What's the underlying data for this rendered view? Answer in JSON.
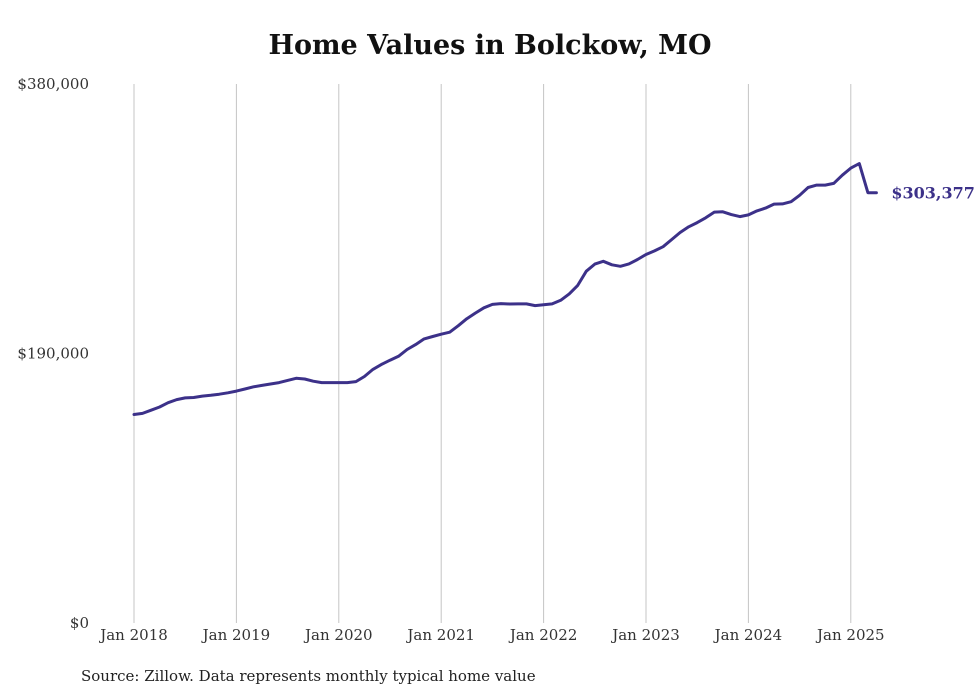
{
  "chart_data": {
    "type": "line",
    "title": "Home Values in Bolckow, MO",
    "source": "Source: Zillow. Data represents monthly typical home value",
    "xlabel": "",
    "ylabel": "",
    "x_ticks": [
      "Jan 2018",
      "Jan 2019",
      "Jan 2020",
      "Jan 2021",
      "Jan 2022",
      "Jan 2023",
      "Jan 2024",
      "Jan 2025"
    ],
    "y_ticks": [
      "$0",
      "$190,000",
      "$380,000"
    ],
    "ylim": [
      0,
      380000
    ],
    "grid": "vertical",
    "end_label": "$303,377",
    "line_color": "#3c3189",
    "series": [
      {
        "name": "",
        "x": [
          "2018-01",
          "2018-02",
          "2018-03",
          "2018-04",
          "2018-05",
          "2018-06",
          "2018-07",
          "2018-08",
          "2018-09",
          "2018-10",
          "2018-11",
          "2018-12",
          "2019-01",
          "2019-02",
          "2019-03",
          "2019-04",
          "2019-05",
          "2019-06",
          "2019-07",
          "2019-08",
          "2019-09",
          "2019-10",
          "2019-11",
          "2019-12",
          "2020-01",
          "2020-02",
          "2020-03",
          "2020-04",
          "2020-05",
          "2020-06",
          "2020-07",
          "2020-08",
          "2020-09",
          "2020-10",
          "2020-11",
          "2020-12",
          "2021-01",
          "2021-02",
          "2021-03",
          "2021-04",
          "2021-05",
          "2021-06",
          "2021-07",
          "2021-08",
          "2021-09",
          "2021-10",
          "2021-11",
          "2021-12",
          "2022-01",
          "2022-02",
          "2022-03",
          "2022-04",
          "2022-05",
          "2022-06",
          "2022-07",
          "2022-08",
          "2022-09",
          "2022-10",
          "2022-11",
          "2022-12",
          "2023-01",
          "2023-02",
          "2023-03",
          "2023-04",
          "2023-05",
          "2023-06",
          "2023-07",
          "2023-08",
          "2023-09",
          "2023-10",
          "2023-11",
          "2023-12",
          "2024-01",
          "2024-02",
          "2024-03",
          "2024-04",
          "2024-05",
          "2024-06",
          "2024-07",
          "2024-08",
          "2024-09",
          "2024-10",
          "2024-11",
          "2024-12",
          "2025-01",
          "2025-02",
          "2025-03",
          "2025-04"
        ],
        "values": [
          147000,
          147800,
          150000,
          152300,
          155300,
          157500,
          158700,
          159000,
          160000,
          160500,
          161300,
          162300,
          163500,
          165000,
          166500,
          167500,
          168500,
          169500,
          171000,
          172500,
          172000,
          170500,
          169500,
          169500,
          169500,
          169500,
          170200,
          173800,
          178800,
          182300,
          185300,
          188000,
          192800,
          196300,
          200300,
          202000,
          203600,
          205000,
          209600,
          214500,
          218500,
          222200,
          224600,
          225200,
          224900,
          225000,
          225000,
          223800,
          224400,
          225000,
          227500,
          232000,
          238000,
          248000,
          253000,
          255000,
          252500,
          251500,
          253200,
          256300,
          259800,
          262300,
          265300,
          270300,
          275300,
          279300,
          282300,
          285700,
          289700,
          289900,
          287900,
          286500,
          287700,
          290500,
          292500,
          295300,
          295500,
          297000,
          301500,
          307000,
          308700,
          308700,
          309900,
          315700,
          320700,
          323900,
          303377,
          303377
        ]
      }
    ]
  }
}
